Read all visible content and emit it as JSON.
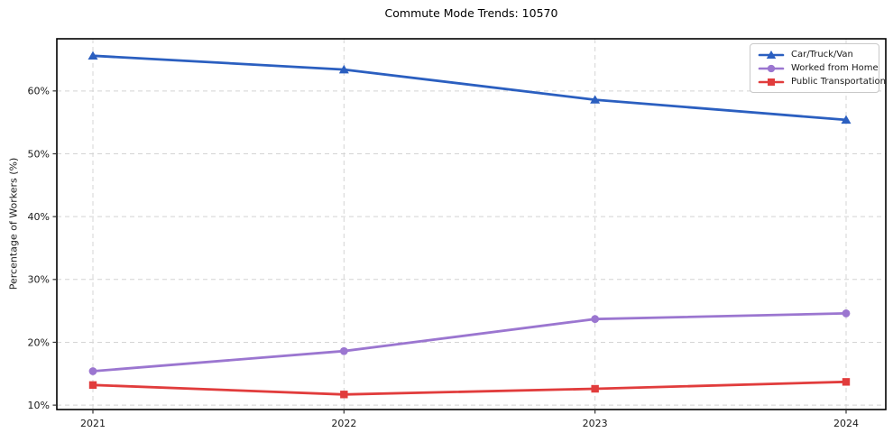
{
  "chart_data": {
    "type": "line",
    "title": "Commute Mode Trends: 10570",
    "xlabel": "",
    "ylabel": "Percentage of Workers (%)",
    "categories": [
      "2021",
      "2022",
      "2023",
      "2024"
    ],
    "series": [
      {
        "name": "Car/Truck/Van",
        "marker": "triangle",
        "color": "#2b5fc0",
        "values": [
          65.6,
          63.4,
          58.6,
          55.4
        ]
      },
      {
        "name": "Worked from Home",
        "marker": "circle",
        "color": "#9b76d0",
        "values": [
          15.4,
          18.6,
          23.7,
          24.6
        ]
      },
      {
        "name": "Public Transportation",
        "marker": "square",
        "color": "#e13c3c",
        "values": [
          13.2,
          11.7,
          12.6,
          13.7
        ]
      }
    ],
    "ylim": [
      9.3,
      68.3
    ],
    "yticks": [
      10,
      20,
      30,
      40,
      50,
      60
    ],
    "ytick_labels": [
      "10%",
      "20%",
      "30%",
      "40%",
      "50%",
      "60%"
    ],
    "grid": true,
    "grid_line_style": "dashed",
    "legend_position": "upper-right",
    "colors": {
      "grid": "#d4d4d4",
      "spine": "#000000",
      "tick": "#333333",
      "tick_text": "#1a1a1a"
    }
  }
}
